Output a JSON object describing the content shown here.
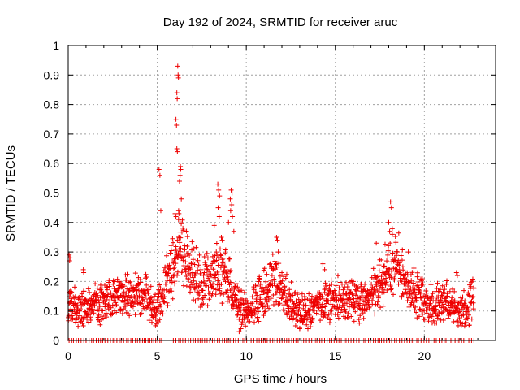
{
  "chart_data": {
    "type": "scatter",
    "title": "Day 192 of 2024, SRMTID for receiver aruc",
    "xlabel": "GPS time / hours",
    "ylabel": "SRMTID / TECUs",
    "xlim": [
      0,
      24
    ],
    "ylim": [
      0,
      1
    ],
    "xticks": [
      0,
      5,
      10,
      15,
      20
    ],
    "xtick_labels": [
      "0",
      "5",
      "10",
      "15",
      "20"
    ],
    "yticks": [
      0,
      0.1,
      0.2,
      0.3,
      0.4,
      0.5,
      0.6,
      0.7,
      0.8,
      0.9,
      1
    ],
    "ytick_labels": [
      "0",
      "0.1",
      "0.2",
      "0.3",
      "0.4",
      "0.5",
      "0.6",
      "0.7",
      "0.8",
      "0.9",
      "1"
    ],
    "grid": true,
    "marker": "plus",
    "color": "#ee0000",
    "series": [
      {
        "name": "SRMTID",
        "profile_x": [
          0,
          0.5,
          1,
          2,
          3,
          4,
          4.5,
          5,
          5.5,
          6,
          6.3,
          6.6,
          7,
          7.5,
          8,
          8.5,
          9,
          9.5,
          10,
          10.5,
          11,
          11.5,
          12,
          12.5,
          13,
          13.5,
          14,
          15,
          16,
          17,
          17.5,
          18,
          18.3,
          18.6,
          19,
          19.5,
          20,
          20.5,
          21,
          21.5,
          22,
          22.5,
          22.8
        ],
        "profile_y": [
          0.14,
          0.1,
          0.12,
          0.13,
          0.15,
          0.15,
          0.14,
          0.1,
          0.2,
          0.28,
          0.32,
          0.27,
          0.23,
          0.19,
          0.22,
          0.25,
          0.2,
          0.13,
          0.1,
          0.13,
          0.17,
          0.2,
          0.17,
          0.13,
          0.09,
          0.1,
          0.13,
          0.14,
          0.13,
          0.15,
          0.2,
          0.24,
          0.28,
          0.25,
          0.2,
          0.16,
          0.14,
          0.12,
          0.14,
          0.12,
          0.09,
          0.12,
          0.15
        ],
        "spikes": [
          {
            "x": 0.05,
            "y": 0.29
          },
          {
            "x": 0.08,
            "y": 0.27
          },
          {
            "x": 0.1,
            "y": 0.28
          },
          {
            "x": 0.85,
            "y": 0.24
          },
          {
            "x": 0.87,
            "y": 0.23
          },
          {
            "x": 5.1,
            "y": 0.58
          },
          {
            "x": 5.15,
            "y": 0.56
          },
          {
            "x": 5.2,
            "y": 0.44
          },
          {
            "x": 6.0,
            "y": 0.43
          },
          {
            "x": 6.05,
            "y": 0.42
          },
          {
            "x": 6.15,
            "y": 0.93
          },
          {
            "x": 6.17,
            "y": 0.9
          },
          {
            "x": 6.19,
            "y": 0.89
          },
          {
            "x": 6.1,
            "y": 0.84
          },
          {
            "x": 6.12,
            "y": 0.82
          },
          {
            "x": 6.05,
            "y": 0.75
          },
          {
            "x": 6.08,
            "y": 0.73
          },
          {
            "x": 6.1,
            "y": 0.65
          },
          {
            "x": 6.13,
            "y": 0.64
          },
          {
            "x": 6.3,
            "y": 0.59
          },
          {
            "x": 6.32,
            "y": 0.58
          },
          {
            "x": 6.28,
            "y": 0.56
          },
          {
            "x": 6.25,
            "y": 0.54
          },
          {
            "x": 6.35,
            "y": 0.48
          },
          {
            "x": 6.2,
            "y": 0.44
          },
          {
            "x": 6.22,
            "y": 0.43
          },
          {
            "x": 8.4,
            "y": 0.53
          },
          {
            "x": 8.45,
            "y": 0.51
          },
          {
            "x": 8.5,
            "y": 0.49
          },
          {
            "x": 8.42,
            "y": 0.45
          },
          {
            "x": 8.48,
            "y": 0.42
          },
          {
            "x": 8.2,
            "y": 0.39
          },
          {
            "x": 8.6,
            "y": 0.35
          },
          {
            "x": 8.65,
            "y": 0.34
          },
          {
            "x": 9.15,
            "y": 0.51
          },
          {
            "x": 9.2,
            "y": 0.5
          },
          {
            "x": 9.1,
            "y": 0.48
          },
          {
            "x": 9.18,
            "y": 0.46
          },
          {
            "x": 9.12,
            "y": 0.44
          },
          {
            "x": 9.22,
            "y": 0.42
          },
          {
            "x": 9.0,
            "y": 0.4
          },
          {
            "x": 9.3,
            "y": 0.37
          },
          {
            "x": 11.7,
            "y": 0.35
          },
          {
            "x": 11.75,
            "y": 0.34
          },
          {
            "x": 11.8,
            "y": 0.3
          },
          {
            "x": 14.3,
            "y": 0.26
          },
          {
            "x": 14.4,
            "y": 0.24
          },
          {
            "x": 18.1,
            "y": 0.47
          },
          {
            "x": 18.15,
            "y": 0.45
          },
          {
            "x": 18.0,
            "y": 0.4
          },
          {
            "x": 18.05,
            "y": 0.37
          },
          {
            "x": 18.2,
            "y": 0.36
          },
          {
            "x": 17.3,
            "y": 0.33
          },
          {
            "x": 19.1,
            "y": 0.3
          },
          {
            "x": 21.8,
            "y": 0.23
          },
          {
            "x": 21.85,
            "y": 0.22
          },
          {
            "x": 9.6,
            "y": 0.03
          },
          {
            "x": 9.7,
            "y": 0.04
          },
          {
            "x": 13.0,
            "y": 0.04
          },
          {
            "x": 21.9,
            "y": 0.05
          },
          {
            "x": 4.9,
            "y": 0.05
          }
        ],
        "baseline_y": 0,
        "baseline_x_range": [
          0,
          22.8
        ],
        "note": "Dense plus-marker scatter of SRMTID values around the profile, plus a row of zero values along the x axis"
      }
    ]
  }
}
